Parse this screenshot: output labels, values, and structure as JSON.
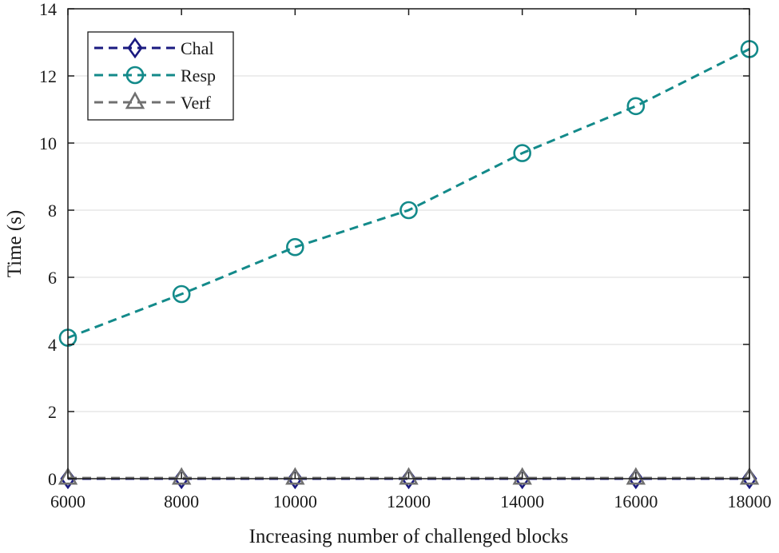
{
  "chart_data": {
    "type": "line",
    "xlabel": "Increasing number of challenged blocks",
    "ylabel": "Time (s)",
    "x": [
      6000,
      8000,
      10000,
      12000,
      14000,
      16000,
      18000
    ],
    "xlim": [
      6000,
      18000
    ],
    "ylim": [
      0,
      14
    ],
    "xticks": [
      6000,
      8000,
      10000,
      12000,
      14000,
      16000,
      18000
    ],
    "yticks": [
      0,
      2,
      4,
      6,
      8,
      10,
      12,
      14
    ],
    "grid": "horizontal",
    "legend_position": "top-left",
    "series": [
      {
        "name": "Chal",
        "values": [
          0,
          0,
          0,
          0,
          0,
          0,
          0
        ],
        "color": "#1a1a80",
        "marker": "diamond",
        "linestyle": "dashed"
      },
      {
        "name": "Resp",
        "values": [
          4.2,
          5.5,
          6.9,
          8.0,
          9.7,
          11.1,
          12.8
        ],
        "color": "#138a8a",
        "marker": "circle",
        "linestyle": "dashed"
      },
      {
        "name": "Verf",
        "values": [
          0.02,
          0.02,
          0.02,
          0.02,
          0.02,
          0.02,
          0.02
        ],
        "color": "#707070",
        "marker": "triangle",
        "linestyle": "dashed"
      }
    ]
  }
}
